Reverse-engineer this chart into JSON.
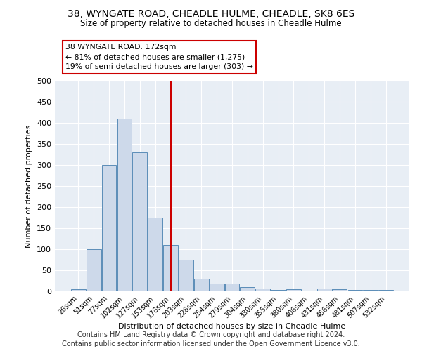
{
  "title": "38, WYNGATE ROAD, CHEADLE HULME, CHEADLE, SK8 6ES",
  "subtitle": "Size of property relative to detached houses in Cheadle Hulme",
  "xlabel": "Distribution of detached houses by size in Cheadle Hulme",
  "ylabel": "Number of detached properties",
  "bar_labels": [
    "26sqm",
    "51sqm",
    "77sqm",
    "102sqm",
    "127sqm",
    "153sqm",
    "178sqm",
    "203sqm",
    "228sqm",
    "254sqm",
    "279sqm",
    "304sqm",
    "330sqm",
    "355sqm",
    "380sqm",
    "406sqm",
    "431sqm",
    "456sqm",
    "481sqm",
    "507sqm",
    "532sqm"
  ],
  "bar_values": [
    5,
    100,
    300,
    410,
    330,
    175,
    110,
    75,
    30,
    18,
    18,
    10,
    6,
    4,
    5,
    2,
    6,
    5,
    4,
    4,
    4
  ],
  "bar_color": "#cdd9ea",
  "bar_edge_color": "#5b8db8",
  "vline_index": 6,
  "vline_color": "#cc0000",
  "annotation_line1": "38 WYNGATE ROAD: 172sqm",
  "annotation_line2": "← 81% of detached houses are smaller (1,275)",
  "annotation_line3": "19% of semi-detached houses are larger (303) →",
  "annotation_box_color": "#ffffff",
  "annotation_box_edge": "#cc0000",
  "plot_bg_color": "#e8eef5",
  "grid_color": "#ffffff",
  "footer1": "Contains HM Land Registry data © Crown copyright and database right 2024.",
  "footer2": "Contains public sector information licensed under the Open Government Licence v3.0.",
  "ylim": [
    0,
    500
  ],
  "yticks": [
    0,
    50,
    100,
    150,
    200,
    250,
    300,
    350,
    400,
    450,
    500
  ]
}
